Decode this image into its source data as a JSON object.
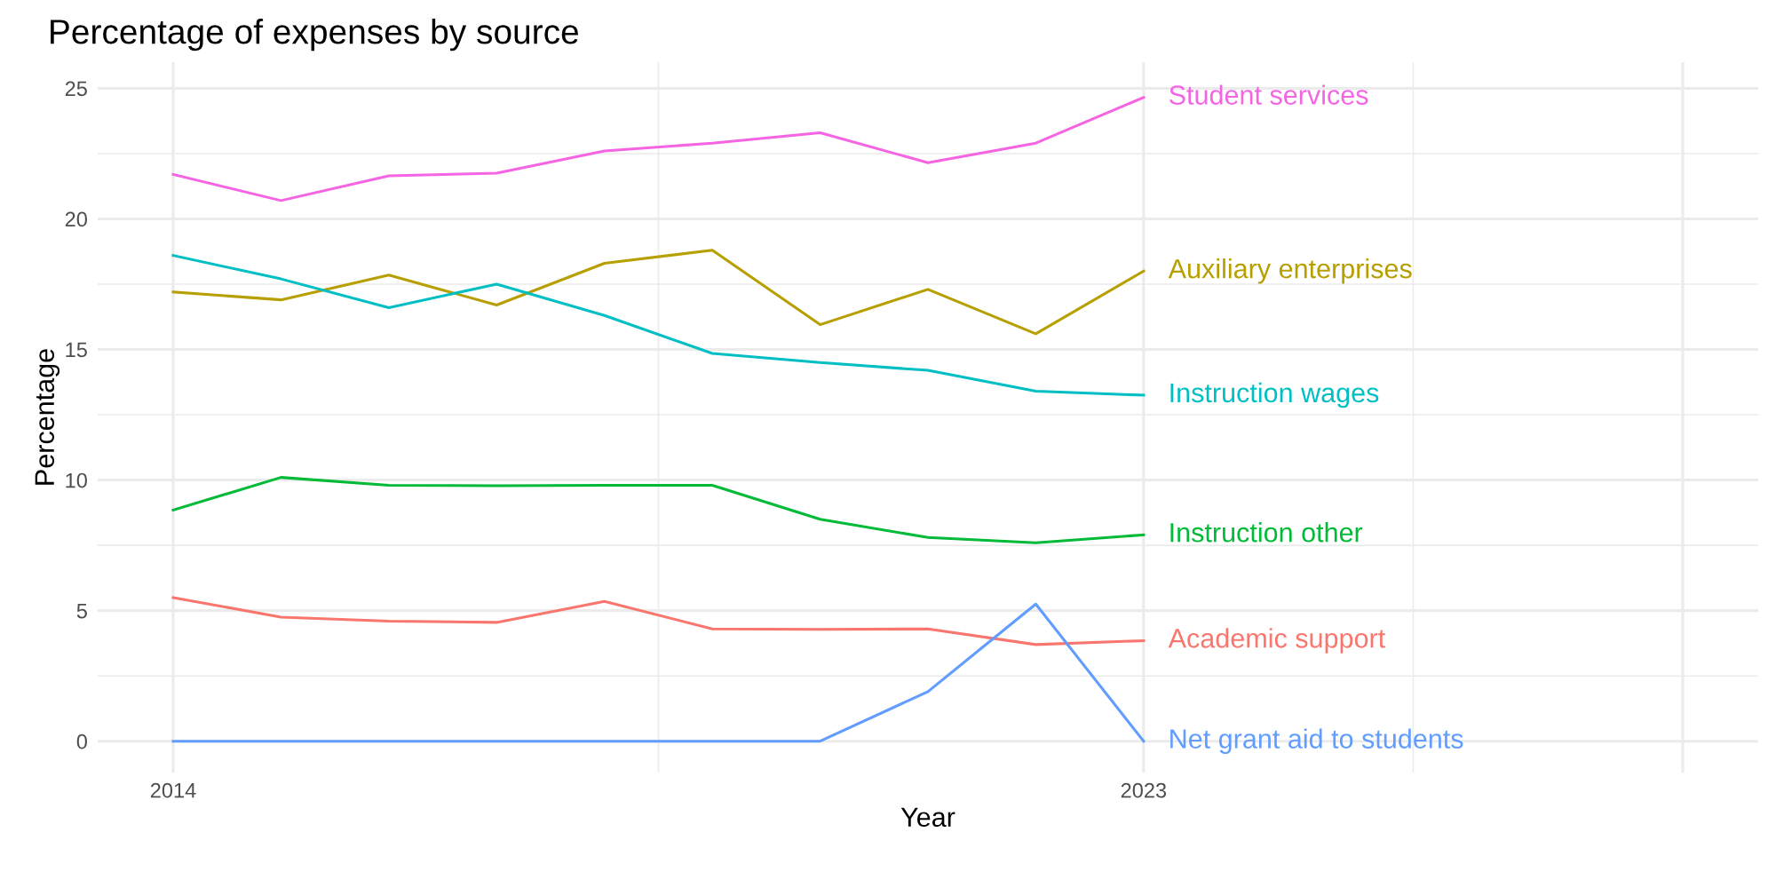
{
  "chart_data": {
    "type": "line",
    "title": "Percentage of expenses by source",
    "xlabel": "Year",
    "ylabel": "Percentage",
    "x": [
      2014,
      2015,
      2016,
      2017,
      2018,
      2019,
      2020,
      2021,
      2022,
      2023
    ],
    "series": [
      {
        "name": "Student services",
        "color": "#F564E3",
        "values": [
          21.7,
          20.7,
          21.65,
          21.75,
          22.6,
          22.9,
          23.3,
          22.15,
          22.9,
          24.65
        ]
      },
      {
        "name": "Auxiliary enterprises",
        "color": "#B79F00",
        "values": [
          17.2,
          16.9,
          17.85,
          16.7,
          18.3,
          18.8,
          15.95,
          17.3,
          15.6,
          18.0
        ]
      },
      {
        "name": "Instruction wages",
        "color": "#00BFC4",
        "values": [
          18.6,
          17.7,
          16.6,
          17.5,
          16.3,
          14.85,
          14.5,
          14.2,
          13.4,
          13.25
        ]
      },
      {
        "name": "Instruction other",
        "color": "#00BA38",
        "values": [
          8.85,
          10.1,
          9.8,
          9.78,
          9.8,
          9.8,
          8.5,
          7.8,
          7.6,
          7.9
        ]
      },
      {
        "name": "Academic support",
        "color": "#F8766D",
        "values": [
          5.5,
          4.75,
          4.6,
          4.55,
          5.35,
          4.3,
          4.28,
          4.3,
          3.7,
          3.85
        ]
      },
      {
        "name": "Net grant aid to students",
        "color": "#619CFF",
        "values": [
          0,
          0,
          0,
          0,
          0,
          0,
          0,
          1.9,
          5.25,
          0
        ]
      }
    ],
    "xlim": [
      2013.3,
      2028.7
    ],
    "xticks": [
      2014,
      2023,
      {
        "value": 2028,
        "label": null
      }
    ],
    "ylim": [
      -1.2,
      26
    ],
    "yticks": [
      0,
      5,
      10,
      15,
      20,
      25
    ],
    "grid": true,
    "legend": false,
    "marker": "none",
    "line_style": "solid"
  }
}
